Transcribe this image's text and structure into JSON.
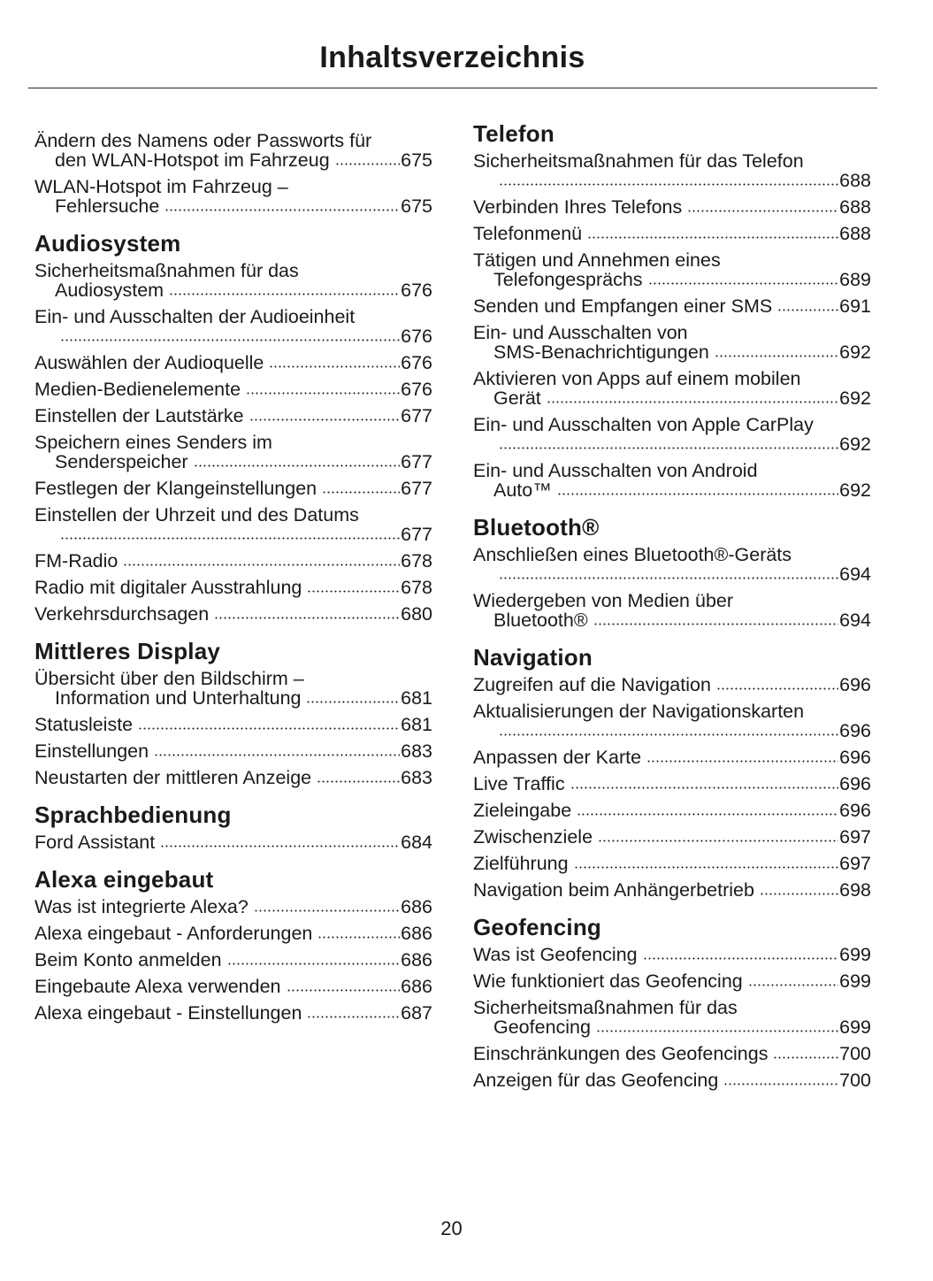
{
  "title": "Inhaltsverzeichnis",
  "page_number": "20",
  "left_column": [
    {
      "heading": "",
      "entries": [
        {
          "title": "Ändern des Namens oder Passworts für",
          "cont": "den WLAN-Hotspot im Fahrzeug",
          "page": "675"
        },
        {
          "title": "WLAN-Hotspot im Fahrzeug –",
          "cont": "Fehlersuche",
          "page": "675"
        }
      ]
    },
    {
      "heading": "Audiosystem",
      "entries": [
        {
          "title": "Sicherheitsmaßnahmen für das",
          "cont": "Audiosystem",
          "page": "676"
        },
        {
          "title": "Ein- und Ausschalten der Audioeinheit",
          "cont": "",
          "page": "676"
        },
        {
          "title": "Auswählen der Audioquelle",
          "page": "676"
        },
        {
          "title": "Medien-Bedienelemente",
          "page": "676"
        },
        {
          "title": "Einstellen der Lautstärke",
          "page": "677"
        },
        {
          "title": "Speichern eines Senders im",
          "cont": "Senderspeicher",
          "page": "677"
        },
        {
          "title": "Festlegen der Klangeinstellungen",
          "page": "677"
        },
        {
          "title": "Einstellen der Uhrzeit und des Datums",
          "cont": "",
          "page": "677"
        },
        {
          "title": "FM-Radio",
          "page": "678"
        },
        {
          "title": "Radio mit digitaler Ausstrahlung",
          "page": "678"
        },
        {
          "title": "Verkehrsdurchsagen",
          "page": "680"
        }
      ]
    },
    {
      "heading": "Mittleres Display",
      "entries": [
        {
          "title": "Übersicht über den Bildschirm –",
          "cont": "Information und Unterhaltung",
          "page": "681"
        },
        {
          "title": "Statusleiste",
          "page": "681"
        },
        {
          "title": "Einstellungen",
          "page": "683"
        },
        {
          "title": "Neustarten der mittleren Anzeige",
          "page": "683"
        }
      ]
    },
    {
      "heading": "Sprachbedienung",
      "entries": [
        {
          "title": "Ford Assistant",
          "page": "684"
        }
      ]
    },
    {
      "heading": "Alexa eingebaut",
      "entries": [
        {
          "title": "Was ist integrierte Alexa?",
          "page": "686"
        },
        {
          "title": "Alexa eingebaut - Anforderungen",
          "page": "686"
        },
        {
          "title": "Beim Konto anmelden",
          "page": "686"
        },
        {
          "title": "Eingebaute Alexa verwenden",
          "page": "686"
        },
        {
          "title": "Alexa eingebaut - Einstellungen",
          "page": "687"
        }
      ]
    }
  ],
  "right_column": [
    {
      "heading": "Telefon",
      "entries": [
        {
          "title": "Sicherheitsmaßnahmen für das Telefon",
          "cont": "",
          "page": "688"
        },
        {
          "title": "Verbinden Ihres Telefons",
          "page": "688"
        },
        {
          "title": "Telefonmenü",
          "page": "688"
        },
        {
          "title": "Tätigen und Annehmen eines",
          "cont": "Telefongesprächs",
          "page": "689"
        },
        {
          "title": "Senden und Empfangen einer SMS",
          "page": "691"
        },
        {
          "title": "Ein- und Ausschalten von",
          "cont": "SMS-Benachrichtigungen",
          "page": "692"
        },
        {
          "title": "Aktivieren von Apps auf einem mobilen",
          "cont": "Gerät",
          "page": "692"
        },
        {
          "title": "Ein- und Ausschalten von Apple CarPlay",
          "cont": "",
          "page": "692"
        },
        {
          "title": "Ein- und Ausschalten von Android",
          "cont": "Auto™",
          "page": "692"
        }
      ]
    },
    {
      "heading": "Bluetooth®",
      "entries": [
        {
          "title": "Anschließen eines Bluetooth®-Geräts",
          "cont": "",
          "page": "694"
        },
        {
          "title": "Wiedergeben von Medien über",
          "cont": "Bluetooth®",
          "page": "694"
        }
      ]
    },
    {
      "heading": "Navigation",
      "entries": [
        {
          "title": "Zugreifen auf die Navigation",
          "page": "696"
        },
        {
          "title": "Aktualisierungen der Navigationskarten",
          "cont": "",
          "page": "696"
        },
        {
          "title": "Anpassen der Karte",
          "page": "696"
        },
        {
          "title": "Live Traffic",
          "page": "696"
        },
        {
          "title": "Zieleingabe",
          "page": "696"
        },
        {
          "title": "Zwischenziele",
          "page": "697"
        },
        {
          "title": "Zielführung",
          "page": "697"
        },
        {
          "title": "Navigation beim Anhängerbetrieb",
          "page": "698"
        }
      ]
    },
    {
      "heading": "Geofencing",
      "entries": [
        {
          "title": "Was ist Geofencing",
          "page": "699"
        },
        {
          "title": "Wie funktioniert das Geofencing",
          "page": "699"
        },
        {
          "title": "Sicherheitsmaßnahmen für das",
          "cont": "Geofencing",
          "page": "699"
        },
        {
          "title": "Einschränkungen des Geofencings",
          "page": "700"
        },
        {
          "title": "Anzeigen für das Geofencing",
          "page": "700"
        }
      ]
    }
  ]
}
